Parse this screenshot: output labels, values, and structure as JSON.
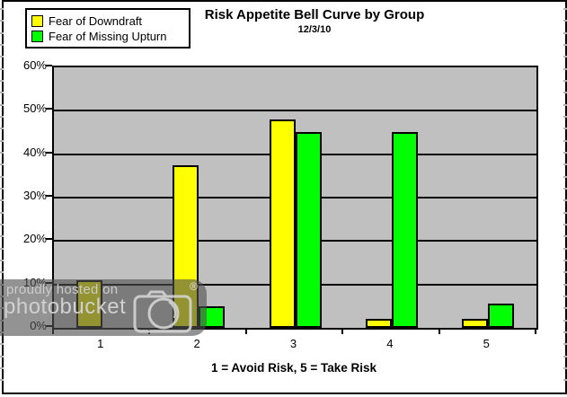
{
  "watermark": {
    "line1": "proudly hosted on",
    "line2": "photobucket",
    "registered": "®"
  },
  "chart_data": {
    "type": "bar",
    "title": "Risk Appetite Bell Curve by Group",
    "subtitle": "12/3/10",
    "categories": [
      "1",
      "2",
      "3",
      "4",
      "5"
    ],
    "series": [
      {
        "name": "Fear of Downdraft",
        "color": "#FFFF00",
        "values": [
          11,
          37.5,
          48,
          2,
          2
        ]
      },
      {
        "name": "Fear of Missing Upturn",
        "color": "#00FF00",
        "values": [
          0,
          5,
          45,
          45,
          5.5
        ]
      }
    ],
    "xlabel": "1 = Avoid Risk, 5 = Take Risk",
    "ylabel": "",
    "ylim": [
      0,
      60
    ],
    "ytick_step": 10,
    "ytick_labels": [
      "0%",
      "10%",
      "20%",
      "30%",
      "40%",
      "50%",
      "60%"
    ],
    "grid": true,
    "legend_position": "top-left",
    "plot_background": "#C0C0C0"
  }
}
